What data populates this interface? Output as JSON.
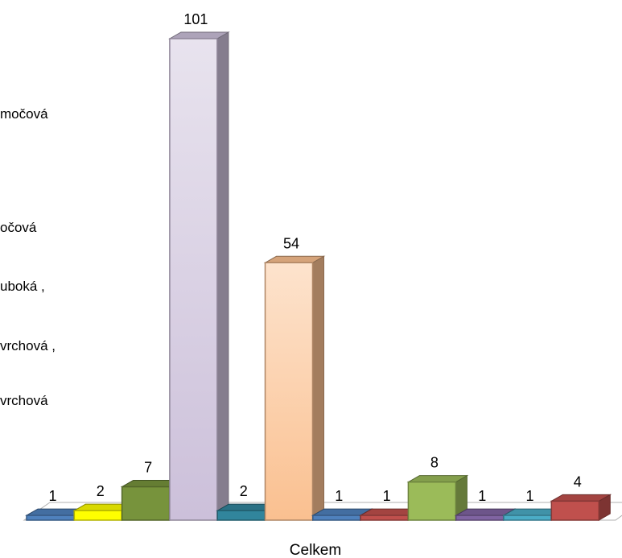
{
  "chart_data": {
    "type": "bar",
    "style": "3d-clustered-column",
    "categories": [
      "Celkem"
    ],
    "legend": {
      "placement": "left (partially cropped)",
      "visible_entries": [
        "močová",
        "očová",
        "uboká ,",
        "vrchová ,",
        "vrchová"
      ]
    },
    "series": [
      {
        "values": [
          1
        ],
        "color": "#4F81BD"
      },
      {
        "values": [
          2
        ],
        "color": "#FFFF00"
      },
      {
        "values": [
          7
        ],
        "color": "#77933C"
      },
      {
        "values": [
          101
        ],
        "color": "#CCC0DA"
      },
      {
        "values": [
          2
        ],
        "color": "#31859C"
      },
      {
        "values": [
          54
        ],
        "color": "#FAC090"
      },
      {
        "values": [
          1
        ],
        "color": "#4F81BD"
      },
      {
        "values": [
          1
        ],
        "color": "#C0504D"
      },
      {
        "values": [
          8
        ],
        "color": "#9BBB59"
      },
      {
        "values": [
          1
        ],
        "color": "#8064A2"
      },
      {
        "values": [
          1
        ],
        "color": "#4BACC6"
      },
      {
        "values": [
          4
        ],
        "color": "#C0504D"
      }
    ],
    "data_labels": [
      "1",
      "2",
      "7",
      "101",
      "2",
      "54",
      "1",
      "1",
      "8",
      "1",
      "1",
      "4"
    ],
    "ylim": [
      0,
      101
    ],
    "grid": false
  }
}
